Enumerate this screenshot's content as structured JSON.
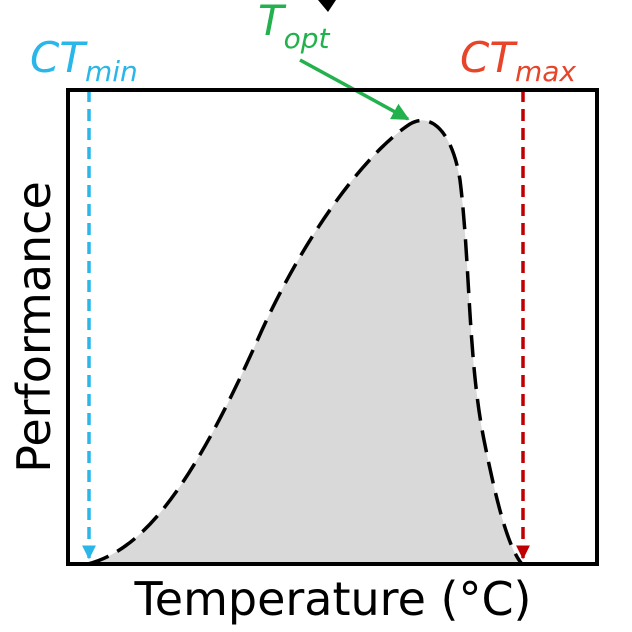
{
  "diagram": {
    "x_axis_label": "Temperature (°C)",
    "y_axis_label": "Performance",
    "markers": {
      "ct_min": {
        "main": "CT",
        "sub": "min",
        "color": "#29b6e8"
      },
      "t_opt": {
        "main": "T",
        "sub": "opt",
        "color": "#22b14c"
      },
      "ct_max": {
        "main": "CT",
        "sub": "max",
        "color": "#e8442a"
      }
    },
    "colors": {
      "curve": "#000000",
      "fill": "#d9d9d9",
      "frame": "#000000",
      "ct_min_line": "#29b6e8",
      "ct_max_line": "#c00000",
      "t_opt_arrow": "#22b14c"
    }
  }
}
